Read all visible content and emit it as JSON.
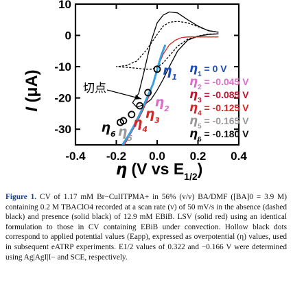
{
  "chart_data": {
    "type": "line",
    "xlabel": "η (V vs E1/2)",
    "xlabel_parts": {
      "eta": "η",
      "rest": " (V vs E",
      "sub": "1/2",
      "close": ")"
    },
    "ylabel": "I (μA)",
    "ylabel_parts": {
      "I": "I",
      "unit": " (μA)"
    },
    "xlim": [
      -0.4,
      0.4
    ],
    "ylim": [
      -35,
      10
    ],
    "xticks": [
      -0.4,
      -0.2,
      0.0,
      0.2,
      0.4
    ],
    "xtick_labels": [
      "-0.4",
      "-0.2",
      "0.0",
      "0.2",
      "0.4"
    ],
    "yticks": [
      10,
      0,
      -10,
      -20,
      -30
    ],
    "ytick_labels": [
      "10",
      "0",
      "-10",
      "-20",
      "-30"
    ],
    "grid": false,
    "series": [
      {
        "style": "dashed",
        "color": "#000000",
        "x": [
          0.3,
          0.25,
          0.2,
          0.15,
          0.1,
          0.06,
          0.03,
          0.0,
          -0.03,
          -0.06,
          -0.1,
          -0.15,
          -0.2,
          -0.15,
          -0.1,
          -0.05,
          0.0,
          0.03,
          0.06,
          0.1,
          0.15,
          0.2,
          0.25,
          0.3
        ],
        "y": [
          0.5,
          0.4,
          -0.2,
          -1.2,
          -3.5,
          -6.5,
          -8.8,
          -10.2,
          -10.8,
          -10.8,
          -10.5,
          -10.2,
          -10.0,
          -9.6,
          -8.2,
          -4.5,
          0.3,
          3.0,
          4.2,
          4.5,
          4.0,
          2.8,
          1.6,
          1.0
        ]
      },
      {
        "style": "solid",
        "color": "#000000",
        "x": [
          0.3,
          0.25,
          0.2,
          0.15,
          0.1,
          0.06,
          0.03,
          0.0,
          -0.03,
          -0.06,
          -0.1,
          -0.12,
          -0.09,
          -0.06,
          -0.03,
          0.0,
          0.03,
          0.06,
          0.1,
          0.15,
          0.2,
          0.25,
          0.3
        ],
        "y": [
          0.5,
          0.3,
          -0.3,
          -1.5,
          -5.0,
          -10.0,
          -14.0,
          -17.5,
          -20.5,
          -22.0,
          -23.0,
          -21.5,
          -18.5,
          -10.5,
          -2.0,
          4.0,
          6.5,
          7.5,
          7.2,
          5.0,
          3.0,
          1.5,
          1.0
        ]
      },
      {
        "style": "solid",
        "color": "#d62728",
        "x": [
          0.3,
          0.25,
          0.2,
          0.15,
          0.12,
          0.09,
          0.06,
          0.03,
          0.01,
          0.0,
          -0.02,
          -0.04,
          -0.07,
          -0.1,
          -0.13,
          -0.16
        ],
        "y": [
          -0.5,
          -0.5,
          -0.5,
          -0.5,
          -0.7,
          -1.5,
          -3.0,
          -6.0,
          -9.0,
          -11.5,
          -15.5,
          -19.5,
          -24.0,
          -28.0,
          -31.5,
          -35.0
        ]
      },
      {
        "style": "solid",
        "color": "#3aa0e0",
        "x": [
          0.04,
          0.02,
          0.0,
          -0.02,
          -0.05,
          -0.08,
          -0.11,
          -0.14,
          -0.17
        ],
        "y": [
          -3.0,
          -6.5,
          -11.0,
          -15.5,
          -20.0,
          -24.5,
          -28.5,
          -32.0,
          -35.0
        ]
      }
    ],
    "points": [
      {
        "label": "η1",
        "x": 0.0,
        "y": -10.8,
        "color": "#1f4eb3"
      },
      {
        "label": "η2",
        "x": -0.045,
        "y": -18.3,
        "color": "#d96fc8"
      },
      {
        "label": "η3",
        "x": -0.085,
        "y": -22.5,
        "color": "#d62728"
      },
      {
        "label": "η4",
        "x": -0.125,
        "y": -25.3,
        "color": "#d62728"
      },
      {
        "label": "η5",
        "x": -0.165,
        "y": -27.3,
        "color": "#999999"
      },
      {
        "label": "η6",
        "x": -0.18,
        "y": -27.8,
        "color": "#111111"
      }
    ],
    "legend": {
      "placement": "right",
      "entries": [
        {
          "sym": "η",
          "sub": "1",
          "value": " = 0 V",
          "color": "#1f4eb3"
        },
        {
          "sym": "η",
          "sub": "2",
          "value": " = -0.045 V",
          "color": "#d96fc8"
        },
        {
          "sym": "η",
          "sub": "3",
          "value": " = -0.085 V",
          "color": "#c01530"
        },
        {
          "sym": "η",
          "sub": "4",
          "value": " = -0.125 V",
          "color": "#d62728"
        },
        {
          "sym": "η",
          "sub": "5",
          "value": " = -0.165 V",
          "color": "#999999"
        },
        {
          "sym": "η",
          "sub": "6",
          "value": " = -0.180 V",
          "color": "#111111"
        }
      ]
    },
    "annotation": {
      "text": "切点"
    }
  },
  "caption": {
    "label": "Figure 1.",
    "text": "CV of 1.17 mM Br−CuIITPMA+ in 56% (v/v) BA/DMF ([BA]0 = 3.9 M) containing 0.2 M TBAClO4 recorded at a scan rate (v) of 50 mV/s in the absence (dashed black) and presence (solid black) of 12.9 mM EBiB. LSV (solid red) using an identical formulation to those in CV containing EBiB under convection. Hollow black dots correspond to applied potential values (Eapp), expressed as overpotential (η) values, used in subsequent eATRP experiments. E1/2 values of 0.322 and −0.166 V were determined using Ag|AgI|I− and SCE, respectively."
  }
}
